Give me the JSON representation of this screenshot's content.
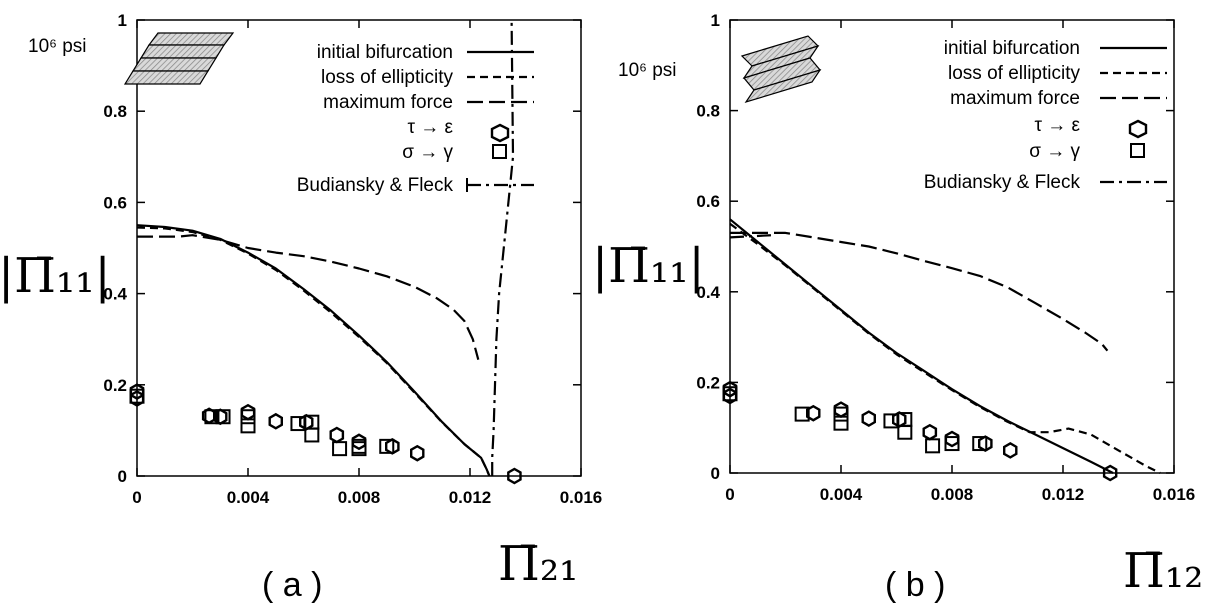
{
  "chart_data": [
    {
      "type": "line",
      "caption": "( a )",
      "unit_label": "10⁶ psi",
      "ylabel": "|Π̄₁₁|",
      "xlabel": "Π̄₂₁",
      "xlim": [
        0,
        0.016
      ],
      "ylim": [
        0,
        1
      ],
      "x_ticks": [
        "0",
        "0.004",
        "0.008",
        "0.012",
        "0.016"
      ],
      "y_ticks": [
        "0",
        "0.2",
        "0.4",
        "0.6",
        "0.8",
        "1"
      ],
      "legend": [
        "initial bifurcation",
        "loss of ellipticity",
        "maximum force",
        "τ → ε",
        "σ → γ",
        "Budiansky & Fleck"
      ],
      "series": [
        {
          "name": "initial bifurcation",
          "style": "solid",
          "x": [
            0,
            0.001,
            0.002,
            0.003,
            0.004,
            0.005,
            0.006,
            0.007,
            0.008,
            0.009,
            0.01,
            0.011,
            0.0118,
            0.0124,
            0.0126,
            0.0127
          ],
          "y": [
            0.55,
            0.546,
            0.538,
            0.52,
            0.49,
            0.455,
            0.41,
            0.362,
            0.308,
            0.25,
            0.185,
            0.118,
            0.07,
            0.04,
            0.015,
            0.0
          ]
        },
        {
          "name": "loss of ellipticity",
          "style": "dash",
          "x": [
            0,
            0.001,
            0.002,
            0.003,
            0.004,
            0.005,
            0.006,
            0.007,
            0.008,
            0.009,
            0.01,
            0.011,
            0.0118,
            0.0124,
            0.0126,
            0.0127
          ],
          "y": [
            0.545,
            0.543,
            0.535,
            0.518,
            0.488,
            0.452,
            0.407,
            0.358,
            0.305,
            0.248,
            0.183,
            0.117,
            0.07,
            0.04,
            0.015,
            0.0
          ]
        },
        {
          "name": "maximum force",
          "style": "longdash",
          "x": [
            0,
            0.0015,
            0.002,
            0.003,
            0.004,
            0.005,
            0.006,
            0.007,
            0.008,
            0.009,
            0.01,
            0.0108,
            0.0114,
            0.0118,
            0.0121,
            0.0123
          ],
          "y": [
            0.525,
            0.525,
            0.528,
            0.518,
            0.5,
            0.49,
            0.482,
            0.47,
            0.455,
            0.438,
            0.415,
            0.39,
            0.365,
            0.34,
            0.3,
            0.255
          ]
        },
        {
          "name": "Budiansky & Fleck",
          "style": "dashdot",
          "x": [
            0.0128,
            0.0128,
            0.01285,
            0.0129,
            0.01295,
            0.01305,
            0.0133,
            0.01355,
            0.0135
          ],
          "y": [
            0.0,
            0.04,
            0.1,
            0.2,
            0.3,
            0.4,
            0.55,
            0.7,
            1.0
          ]
        },
        {
          "name": "τ → ε",
          "marker": "hexagon",
          "x": [
            0,
            0,
            0.0026,
            0.003,
            0.004,
            0.005,
            0.0061,
            0.0072,
            0.008,
            0.0092,
            0.0101,
            0.0136
          ],
          "y": [
            0.185,
            0.17,
            0.132,
            0.13,
            0.14,
            0.12,
            0.118,
            0.09,
            0.075,
            0.065,
            0.05,
            0.0
          ]
        },
        {
          "name": "σ → γ",
          "marker": "square",
          "x": [
            0,
            0.0027,
            0.0031,
            0.004,
            0.004,
            0.0058,
            0.0063,
            0.0063,
            0.0073,
            0.008,
            0.008,
            0.009
          ],
          "y": [
            0.175,
            0.13,
            0.13,
            0.13,
            0.11,
            0.115,
            0.118,
            0.09,
            0.06,
            0.065,
            0.06,
            0.065
          ]
        }
      ]
    },
    {
      "type": "line",
      "caption": "( b )",
      "unit_label": "10⁶ psi",
      "ylabel": "|Π̄₁₁|",
      "xlabel": "Π̄₁₂",
      "xlim": [
        0,
        0.016
      ],
      "ylim": [
        0,
        1
      ],
      "x_ticks": [
        "0",
        "0.004",
        "0.008",
        "0.012",
        "0.016"
      ],
      "y_ticks": [
        "0",
        "0.2",
        "0.4",
        "0.6",
        "0.8",
        "1"
      ],
      "legend": [
        "initial bifurcation",
        "loss of ellipticity",
        "maximum force",
        "τ → ε",
        "σ → γ",
        "Budiansky & Fleck"
      ],
      "series": [
        {
          "name": "initial bifurcation",
          "style": "solid",
          "x": [
            0,
            0.001,
            0.002,
            0.003,
            0.004,
            0.005,
            0.006,
            0.007,
            0.008,
            0.009,
            0.01,
            0.011,
            0.012,
            0.013,
            0.0138
          ],
          "y": [
            0.56,
            0.51,
            0.46,
            0.41,
            0.36,
            0.31,
            0.265,
            0.225,
            0.185,
            0.148,
            0.115,
            0.085,
            0.055,
            0.025,
            0.0
          ]
        },
        {
          "name": "loss of ellipticity",
          "style": "dash",
          "x": [
            0,
            0.001,
            0.002,
            0.003,
            0.004,
            0.005,
            0.006,
            0.007,
            0.008,
            0.009,
            0.01,
            0.0108,
            0.0115,
            0.0122,
            0.013,
            0.014,
            0.015,
            0.0155
          ],
          "y": [
            0.55,
            0.505,
            0.458,
            0.408,
            0.358,
            0.308,
            0.262,
            0.222,
            0.183,
            0.146,
            0.113,
            0.09,
            0.09,
            0.098,
            0.085,
            0.05,
            0.015,
            0.0
          ]
        },
        {
          "name": "maximum force",
          "style": "longdash",
          "x": [
            0,
            0.002,
            0.003,
            0.004,
            0.005,
            0.006,
            0.007,
            0.008,
            0.009,
            0.01,
            0.011,
            0.012,
            0.0128,
            0.0134,
            0.0136
          ],
          "y": [
            0.53,
            0.53,
            0.52,
            0.51,
            0.5,
            0.485,
            0.468,
            0.452,
            0.435,
            0.41,
            0.375,
            0.34,
            0.31,
            0.285,
            0.27
          ]
        },
        {
          "name": "Budiansky & Fleck",
          "style": "dashdot",
          "x": [
            0,
            0.0015
          ],
          "y": [
            0.52,
            0.525
          ]
        },
        {
          "name": "τ → ε",
          "marker": "hexagon",
          "x": [
            0,
            0,
            0.003,
            0.004,
            0.005,
            0.0061,
            0.0072,
            0.008,
            0.0092,
            0.0101,
            0.0137
          ],
          "y": [
            0.185,
            0.17,
            0.132,
            0.14,
            0.12,
            0.118,
            0.09,
            0.075,
            0.065,
            0.05,
            0.0
          ]
        },
        {
          "name": "σ → γ",
          "marker": "square",
          "x": [
            0,
            0.0026,
            0.004,
            0.004,
            0.0058,
            0.0063,
            0.0063,
            0.0073,
            0.008,
            0.009
          ],
          "y": [
            0.175,
            0.13,
            0.13,
            0.11,
            0.115,
            0.118,
            0.09,
            0.06,
            0.065,
            0.065
          ]
        }
      ]
    }
  ]
}
